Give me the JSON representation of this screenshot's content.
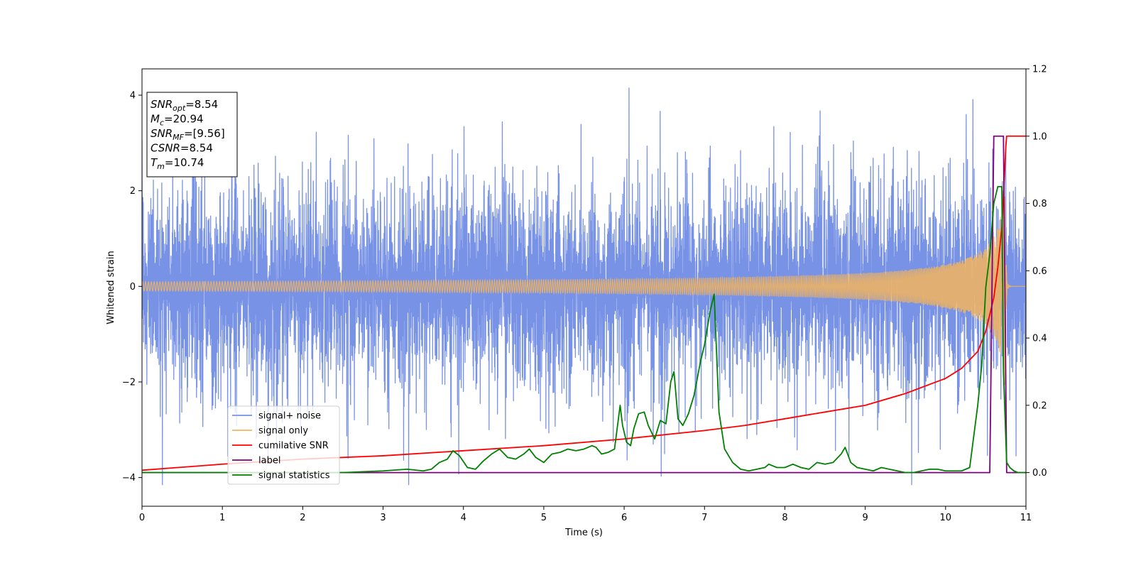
{
  "chart_data": {
    "type": "line",
    "xlabel": "Time (s)",
    "ylabel_left": "Whitened strain",
    "ylabel_right": "",
    "xlim": [
      0,
      11
    ],
    "ylim_left": [
      -4.6,
      4.55
    ],
    "ylim_right": [
      -0.1,
      1.2
    ],
    "x_ticks": [
      0,
      1,
      2,
      3,
      4,
      5,
      6,
      7,
      8,
      9,
      10,
      11
    ],
    "y_left_ticks": [
      -4,
      -2,
      0,
      2,
      4
    ],
    "y_right_ticks": [
      0.0,
      0.2,
      0.4,
      0.6,
      0.8,
      1.0,
      1.2
    ],
    "y_right_tick_labels": [
      "0.0",
      "0.2",
      "0.4",
      "0.6",
      "0.8",
      "1.0",
      "1.2"
    ],
    "grid": false,
    "legend_position": "lower-left",
    "info_box": {
      "lines": [
        {
          "base": "SNR",
          "sub": "opt",
          "value": "=8.54"
        },
        {
          "base": "M",
          "sub": "c",
          "value": "=20.94"
        },
        {
          "base": "SNR",
          "sub": "MF",
          "value": "=[9.56]"
        },
        {
          "base": "CSNR",
          "sub": "",
          "value": "=8.54"
        },
        {
          "base": "T",
          "sub": "m",
          "value": "=10.74"
        }
      ]
    },
    "series": [
      {
        "name": "signal+ noise",
        "axis": "left",
        "color": "#7892e6",
        "kind": "noise-envelope",
        "typical_amplitude": 1.5,
        "peak_range": [
          -4.15,
          4.15
        ]
      },
      {
        "name": "signal only",
        "axis": "left",
        "color": "#f2b45c",
        "kind": "chirp",
        "merger_time": 10.74,
        "peak_amplitude": 2.3
      },
      {
        "name": "cumilative SNR",
        "axis": "right",
        "color": "#ff0000",
        "x": [
          0,
          1,
          2,
          3,
          4,
          5,
          6,
          7,
          7.5,
          8,
          8.5,
          9,
          9.5,
          10,
          10.2,
          10.4,
          10.5,
          10.6,
          10.65,
          10.7,
          10.72,
          10.74,
          10.75,
          10.76,
          11
        ],
        "y": [
          0.007,
          0.025,
          0.04,
          0.05,
          0.065,
          0.08,
          0.1,
          0.125,
          0.14,
          0.16,
          0.18,
          0.2,
          0.235,
          0.28,
          0.31,
          0.36,
          0.42,
          0.52,
          0.61,
          0.73,
          0.82,
          0.92,
          0.97,
          1.0,
          1.0
        ]
      },
      {
        "name": "label",
        "axis": "right",
        "color": "#800080",
        "x": [
          0,
          10.55,
          10.6,
          10.72,
          10.76,
          11
        ],
        "y": [
          0,
          0,
          1.0,
          1.0,
          0,
          0
        ]
      },
      {
        "name": "signal statistics",
        "axis": "right",
        "color": "#008000",
        "x": [
          0,
          1,
          2,
          2.5,
          3.0,
          3.3,
          3.5,
          3.6,
          3.7,
          3.8,
          3.87,
          3.95,
          4.05,
          4.15,
          4.25,
          4.35,
          4.45,
          4.55,
          4.65,
          4.75,
          4.82,
          4.9,
          5.0,
          5.1,
          5.2,
          5.3,
          5.4,
          5.5,
          5.6,
          5.65,
          5.72,
          5.8,
          5.88,
          5.95,
          5.98,
          6.03,
          6.08,
          6.12,
          6.18,
          6.25,
          6.3,
          6.38,
          6.45,
          6.52,
          6.58,
          6.62,
          6.67,
          6.73,
          6.8,
          6.87,
          6.95,
          7.0,
          7.07,
          7.12,
          7.18,
          7.25,
          7.35,
          7.45,
          7.55,
          7.65,
          7.75,
          7.8,
          7.9,
          8.0,
          8.1,
          8.2,
          8.3,
          8.4,
          8.5,
          8.6,
          8.7,
          8.75,
          8.82,
          8.9,
          9.0,
          9.1,
          9.2,
          9.3,
          9.4,
          9.5,
          9.6,
          9.7,
          9.8,
          9.9,
          10.0,
          10.2,
          10.3,
          10.4,
          10.45,
          10.5,
          10.55,
          10.6,
          10.65,
          10.7,
          10.72,
          10.76,
          10.8,
          10.85,
          10.9,
          11.0
        ],
        "y": [
          0.0,
          0.0,
          0.0,
          0.0,
          0.005,
          0.01,
          0.005,
          0.01,
          0.03,
          0.04,
          0.065,
          0.05,
          0.015,
          0.01,
          0.035,
          0.055,
          0.07,
          0.045,
          0.04,
          0.055,
          0.07,
          0.045,
          0.03,
          0.055,
          0.06,
          0.07,
          0.065,
          0.07,
          0.08,
          0.075,
          0.055,
          0.06,
          0.07,
          0.2,
          0.14,
          0.09,
          0.08,
          0.13,
          0.175,
          0.18,
          0.14,
          0.1,
          0.155,
          0.145,
          0.27,
          0.3,
          0.16,
          0.14,
          0.175,
          0.23,
          0.33,
          0.38,
          0.48,
          0.53,
          0.18,
          0.07,
          0.03,
          0.01,
          0.005,
          0.01,
          0.015,
          0.025,
          0.015,
          0.015,
          0.025,
          0.015,
          0.01,
          0.03,
          0.025,
          0.03,
          0.055,
          0.075,
          0.03,
          0.015,
          0.01,
          0.005,
          0.015,
          0.01,
          0.005,
          0.0,
          0.0,
          0.005,
          0.01,
          0.01,
          0.005,
          0.005,
          0.015,
          0.2,
          0.32,
          0.55,
          0.65,
          0.8,
          0.85,
          0.85,
          0.3,
          0.03,
          0.015,
          0.005,
          0.0,
          0.0
        ]
      }
    ]
  }
}
